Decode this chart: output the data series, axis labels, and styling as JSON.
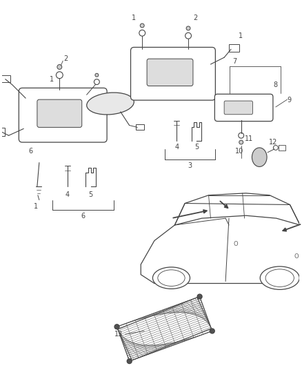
{
  "bg_color": "#ffffff",
  "line_color": "#444444",
  "fig_width": 4.39,
  "fig_height": 5.33,
  "dpi": 100
}
